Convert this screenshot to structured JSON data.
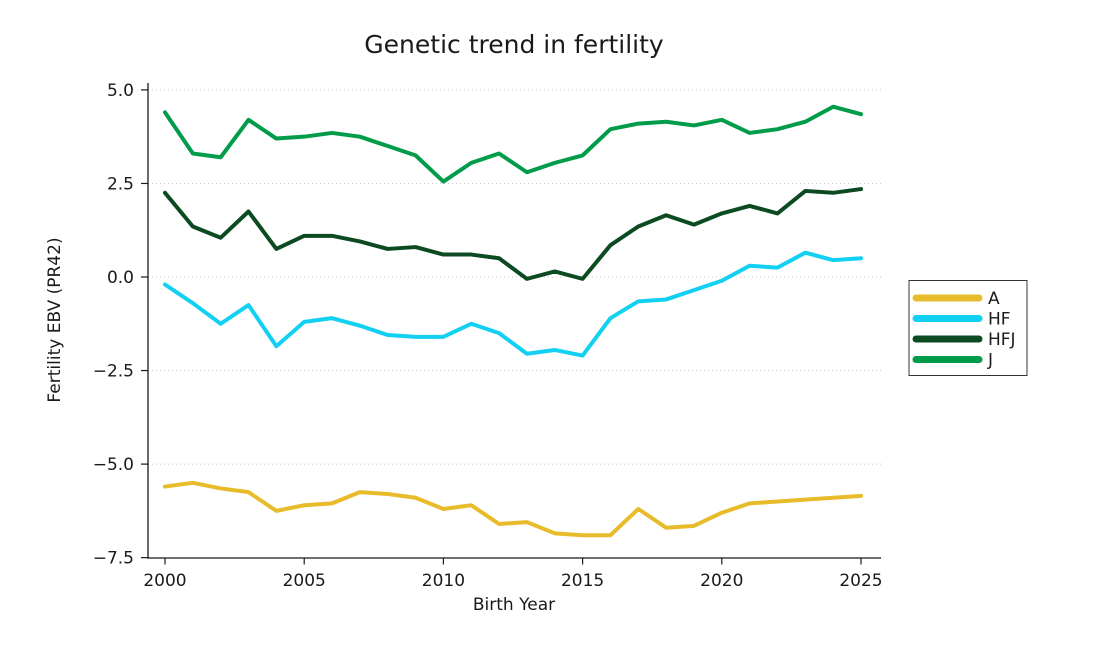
{
  "chart_data": {
    "type": "line",
    "title": "Genetic trend in fertility",
    "xlabel": "Birth Year",
    "ylabel": "Fertility EBV (PR42)",
    "x": [
      2000,
      2001,
      2002,
      2003,
      2004,
      2005,
      2006,
      2007,
      2008,
      2009,
      2010,
      2011,
      2012,
      2013,
      2014,
      2015,
      2016,
      2017,
      2018,
      2019,
      2020,
      2021,
      2022,
      2023,
      2024,
      2025
    ],
    "series": [
      {
        "name": "A",
        "color": "#E8BB2B",
        "values": [
          -5.6,
          -5.5,
          -5.65,
          -5.75,
          -6.25,
          -6.1,
          -6.05,
          -5.75,
          -5.8,
          -5.9,
          -6.2,
          -6.1,
          -6.6,
          -6.55,
          -6.85,
          -6.9,
          -6.9,
          -6.2,
          -6.7,
          -6.65,
          -6.3,
          -6.05,
          -6.0,
          -5.95,
          -5.9,
          -5.85
        ]
      },
      {
        "name": "HF",
        "color": "#12D0F2",
        "values": [
          -0.2,
          -0.7,
          -1.25,
          -0.75,
          -1.85,
          -1.2,
          -1.1,
          -1.3,
          -1.55,
          -1.6,
          -1.6,
          -1.25,
          -1.5,
          -2.05,
          -1.95,
          -2.1,
          -1.1,
          -0.65,
          -0.6,
          -0.35,
          -0.1,
          0.3,
          0.25,
          0.65,
          0.45,
          0.5
        ]
      },
      {
        "name": "HFJ",
        "color": "#0C4A21",
        "values": [
          2.25,
          1.35,
          1.05,
          1.75,
          0.75,
          1.1,
          1.1,
          0.95,
          0.75,
          0.8,
          0.6,
          0.6,
          0.5,
          -0.05,
          0.15,
          -0.05,
          0.85,
          1.35,
          1.65,
          1.4,
          1.7,
          1.9,
          1.7,
          2.3,
          2.25,
          2.35
        ]
      },
      {
        "name": "J",
        "color": "#009C49",
        "values": [
          4.4,
          3.3,
          3.2,
          4.2,
          3.7,
          3.75,
          3.85,
          3.75,
          3.5,
          3.25,
          2.55,
          3.05,
          3.3,
          2.8,
          3.05,
          3.25,
          3.95,
          4.1,
          4.15,
          4.05,
          4.2,
          3.85,
          3.95,
          4.15,
          4.55,
          4.35
        ]
      }
    ],
    "xticks": [
      2000,
      2005,
      2010,
      2015,
      2020,
      2025
    ],
    "yticks": [
      5.0,
      2.5,
      0.0,
      -2.5,
      -5.0,
      -7.5
    ],
    "xlim": [
      2000,
      2025
    ],
    "ylim": [
      -7.5,
      5.0
    ],
    "grid": "horizontal-dotted",
    "legend_position": "center-right",
    "colors": {
      "text": "#1a1a1a",
      "axis": "#1a1a1a",
      "gridline": "#c9c9c9",
      "legend_border": "#333333",
      "background": "#ffffff"
    }
  }
}
